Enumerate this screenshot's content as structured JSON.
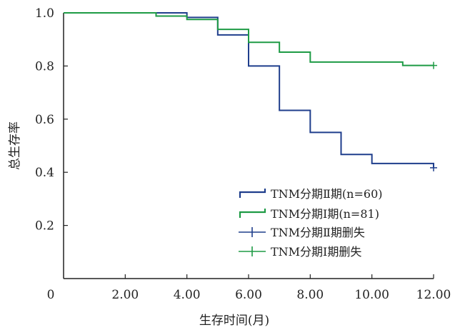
{
  "chart_data": {
    "type": "line",
    "xlabel": "生存时间(月)",
    "ylabel": "总生存率",
    "xlim": [
      0,
      12
    ],
    "ylim": [
      0,
      1.0
    ],
    "x_ticks": [
      "0",
      "2.00",
      "4.00",
      "6.00",
      "8.00",
      "10.00",
      "12.00"
    ],
    "y_ticks": [
      "0.2",
      "0.4",
      "0.6",
      "0.8",
      "1.0"
    ],
    "grid": false,
    "legend_position": "bottom-right",
    "series": [
      {
        "name": "TNM分期Ⅱ期(n=60)",
        "style": "step",
        "color": "#1f3e8c",
        "points": [
          [
            0,
            1.0
          ],
          [
            4.0,
            0.983
          ],
          [
            5.0,
            0.917
          ],
          [
            6.0,
            0.8
          ],
          [
            7.0,
            0.633
          ],
          [
            8.0,
            0.55
          ],
          [
            9.0,
            0.467
          ],
          [
            10.0,
            0.433
          ],
          [
            12.0,
            0.417
          ]
        ]
      },
      {
        "name": "TNM分期Ⅰ期(n=81)",
        "style": "step",
        "color": "#1e9b45",
        "points": [
          [
            0,
            1.0
          ],
          [
            3.0,
            0.988
          ],
          [
            4.0,
            0.975
          ],
          [
            5.0,
            0.938
          ],
          [
            6.0,
            0.889
          ],
          [
            7.0,
            0.852
          ],
          [
            8.0,
            0.815
          ],
          [
            11.0,
            0.802
          ],
          [
            12.0,
            0.802
          ]
        ]
      },
      {
        "name": "TNM分期Ⅱ期删失",
        "style": "censor",
        "color": "#1f3e8c",
        "points": [
          [
            12.0,
            0.417
          ]
        ]
      },
      {
        "name": "TNM分期Ⅰ期删失",
        "style": "censor",
        "color": "#1e9b45",
        "points": [
          [
            12.0,
            0.802
          ]
        ]
      }
    ]
  }
}
